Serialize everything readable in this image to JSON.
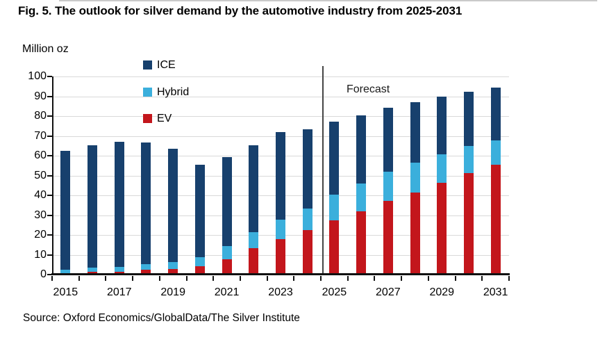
{
  "figure": {
    "title": "Fig. 5. The outlook for silver demand by the automotive industry from 2025-2031",
    "source": "Source: Oxford Economics/GlobalData/The Silver Institute"
  },
  "chart_data": {
    "type": "bar",
    "stacked": true,
    "title": "Fig. 5. The outlook for silver demand by the automotive industry from 2025-2031",
    "unit_label": "Million oz",
    "annotation": "Forecast",
    "forecast_starts_at": "2025",
    "categories": [
      "2015",
      "2016",
      "2017",
      "2018",
      "2019",
      "2020",
      "2021",
      "2022",
      "2023",
      "2024",
      "2025",
      "2026",
      "2027",
      "2028",
      "2029",
      "2030",
      "2031"
    ],
    "x_tick_labels": [
      "2015",
      "2017",
      "2019",
      "2021",
      "2023",
      "2025",
      "2027",
      "2029",
      "2031"
    ],
    "y_ticks": [
      0,
      10,
      20,
      30,
      40,
      50,
      60,
      70,
      80,
      90,
      100
    ],
    "ylim": [
      0,
      100
    ],
    "grid": true,
    "legend_position": "top-left-inside",
    "series": [
      {
        "name": "ICE",
        "color": "#17406D",
        "values": [
          60,
          62,
          63,
          61.5,
          57,
          46.5,
          45,
          44,
          44,
          40,
          37,
          34.5,
          32.5,
          30.5,
          29,
          27.5,
          26.5
        ]
      },
      {
        "name": "Hybrid",
        "color": "#3BAFDC",
        "values": [
          1.5,
          2,
          2.5,
          3,
          3.5,
          4.5,
          6.5,
          8,
          10,
          11,
          13,
          14,
          14.5,
          15,
          14.5,
          13.5,
          12.5
        ]
      },
      {
        "name": "EV",
        "color": "#C3161C",
        "values": [
          0.5,
          1,
          1,
          2,
          2.5,
          4,
          7.5,
          13,
          17.5,
          22,
          27,
          31.5,
          37,
          41,
          46,
          51,
          55
        ]
      }
    ],
    "totals": [
      62,
      65,
      66.5,
      66.5,
      63,
      55,
      59,
      65,
      71.5,
      73,
      77,
      80,
      84,
      86.5,
      89.5,
      92,
      94
    ]
  },
  "colors": {
    "gridline": "#d9d9d9",
    "axis": "#111111",
    "forecast_line": "#454545",
    "text": "#000000"
  }
}
